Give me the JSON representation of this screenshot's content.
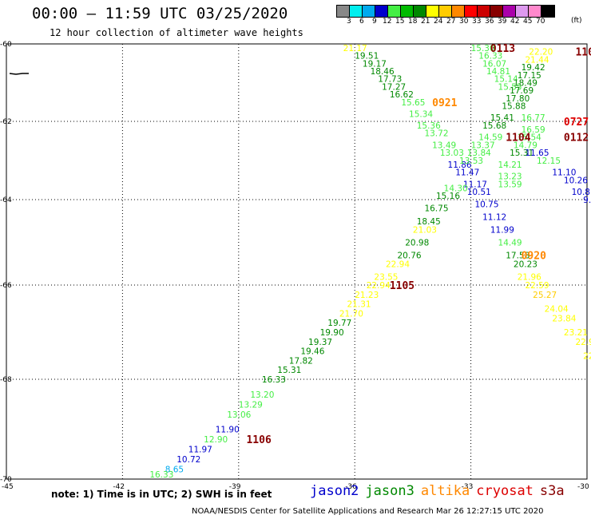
{
  "title": "00:00 – 11:59 UTC 03/25/2020",
  "subtitle": "12 hour collection of altimeter wave heights",
  "colorbar": {
    "labels": [
      "3",
      "6",
      "9",
      "12",
      "15",
      "18",
      "21",
      "24",
      "27",
      "30",
      "33",
      "36",
      "39",
      "42",
      "45",
      "70"
    ],
    "unit": "(ft)",
    "colors": [
      "#888888",
      "#00eeee",
      "#00aaee",
      "#0000cc",
      "#44ee44",
      "#00bb00",
      "#008800",
      "#ffff00",
      "#ffcc00",
      "#ff8800",
      "#ff0000",
      "#cc0000",
      "#880000",
      "#aa00aa",
      "#dd99ee",
      "#ff88cc",
      "#000000"
    ]
  },
  "axes": {
    "lat_labels": [
      "-60",
      "-62",
      "-64",
      "-66",
      "-68",
      "-70"
    ],
    "lon_labels": [
      "-45",
      "-42",
      "-39",
      "-36",
      "-33",
      "-30"
    ]
  },
  "note": "note:  1) Time is in UTC;  2) SWH is in feet",
  "legend": [
    {
      "name": "jason2",
      "color": "#0000cc"
    },
    {
      "name": "jason3",
      "color": "#008800"
    },
    {
      "name": "altika",
      "color": "#ff8800"
    },
    {
      "name": "cryosat",
      "color": "#dd0000"
    },
    {
      "name": "s3a",
      "color": "#880000"
    }
  ],
  "footer": "NOAA/NESDIS Center for Satellite Applications and Research   Mar 26 12:27:15 UTC 2020",
  "pass_times": [
    {
      "t": "0113",
      "lon": -32.5,
      "lat": -60.1,
      "color": "#880000"
    },
    {
      "t": "110",
      "lon": -30.3,
      "lat": -60.2,
      "color": "#880000"
    },
    {
      "t": "0921",
      "lon": -34.0,
      "lat": -61.5,
      "color": "#ff8800"
    },
    {
      "t": "0727",
      "lon": -30.6,
      "lat": -62.0,
      "color": "#dd0000"
    },
    {
      "t": "1104",
      "lon": -32.1,
      "lat": -62.4,
      "color": "#880000"
    },
    {
      "t": "0112",
      "lon": -30.6,
      "lat": -62.4,
      "color": "#880000"
    },
    {
      "t": "0920",
      "lon": -31.7,
      "lat": -65.3,
      "color": "#ff8800"
    },
    {
      "t": "1105",
      "lon": -35.1,
      "lat": -66.0,
      "color": "#880000"
    },
    {
      "t": "1106",
      "lon": -38.8,
      "lat": -69.2,
      "color": "#880000"
    }
  ],
  "points": [
    {
      "v": "21.17",
      "lon": -36.3,
      "lat": -60.1,
      "color": "#ffff00"
    },
    {
      "v": "19.51",
      "lon": -36.0,
      "lat": -60.3,
      "color": "#008800"
    },
    {
      "v": "19.17",
      "lon": -35.8,
      "lat": -60.5,
      "color": "#008800"
    },
    {
      "v": "18.46",
      "lon": -35.6,
      "lat": -60.7,
      "color": "#008800"
    },
    {
      "v": "17.73",
      "lon": -35.4,
      "lat": -60.9,
      "color": "#008800"
    },
    {
      "v": "17.27",
      "lon": -35.3,
      "lat": -61.1,
      "color": "#008800"
    },
    {
      "v": "16.62",
      "lon": -35.1,
      "lat": -61.3,
      "color": "#008800"
    },
    {
      "v": "15.65",
      "lon": -34.8,
      "lat": -61.5,
      "color": "#44ee44"
    },
    {
      "v": "15.34",
      "lon": -34.6,
      "lat": -61.8,
      "color": "#44ee44"
    },
    {
      "v": "15.36",
      "lon": -34.4,
      "lat": -62.1,
      "color": "#44ee44"
    },
    {
      "v": "13.72",
      "lon": -34.2,
      "lat": -62.3,
      "color": "#44ee44"
    },
    {
      "v": "13.49",
      "lon": -34.0,
      "lat": -62.6,
      "color": "#44ee44"
    },
    {
      "v": "13.03",
      "lon": -33.8,
      "lat": -62.8,
      "color": "#44ee44"
    },
    {
      "v": "11.86",
      "lon": -33.6,
      "lat": -63.1,
      "color": "#0000cc"
    },
    {
      "v": "11.47",
      "lon": -33.4,
      "lat": -63.3,
      "color": "#0000cc"
    },
    {
      "v": "11.17",
      "lon": -33.2,
      "lat": -63.6,
      "color": "#0000cc"
    },
    {
      "v": "10.51",
      "lon": -33.1,
      "lat": -63.8,
      "color": "#0000cc"
    },
    {
      "v": "14.30",
      "lon": -33.7,
      "lat": -63.7,
      "color": "#44ee44"
    },
    {
      "v": "15.16",
      "lon": -33.9,
      "lat": -63.9,
      "color": "#008800"
    },
    {
      "v": "16.75",
      "lon": -34.2,
      "lat": -64.2,
      "color": "#008800"
    },
    {
      "v": "18.45",
      "lon": -34.4,
      "lat": -64.5,
      "color": "#008800"
    },
    {
      "v": "21.03",
      "lon": -34.5,
      "lat": -64.7,
      "color": "#ffff00"
    },
    {
      "v": "20.98",
      "lon": -34.7,
      "lat": -65.0,
      "color": "#008800"
    },
    {
      "v": "20.76",
      "lon": -34.9,
      "lat": -65.3,
      "color": "#008800"
    },
    {
      "v": "22.94",
      "lon": -35.2,
      "lat": -65.5,
      "color": "#ffff00"
    },
    {
      "v": "23.55",
      "lon": -35.5,
      "lat": -65.8,
      "color": "#ffff00"
    },
    {
      "v": "22.94",
      "lon": -35.7,
      "lat": -66.0,
      "color": "#ffff00"
    },
    {
      "v": "21.23",
      "lon": -36.0,
      "lat": -66.2,
      "color": "#ffff00"
    },
    {
      "v": "21.31",
      "lon": -36.2,
      "lat": -66.4,
      "color": "#ffff00"
    },
    {
      "v": "21.70",
      "lon": -36.4,
      "lat": -66.6,
      "color": "#ffff00"
    },
    {
      "v": "19.77",
      "lon": -36.7,
      "lat": -66.8,
      "color": "#008800"
    },
    {
      "v": "19.90",
      "lon": -36.9,
      "lat": -67.0,
      "color": "#008800"
    },
    {
      "v": "19.37",
      "lon": -37.2,
      "lat": -67.2,
      "color": "#008800"
    },
    {
      "v": "19.46",
      "lon": -37.4,
      "lat": -67.4,
      "color": "#008800"
    },
    {
      "v": "17.82",
      "lon": -37.7,
      "lat": -67.6,
      "color": "#008800"
    },
    {
      "v": "15.31",
      "lon": -38.0,
      "lat": -67.8,
      "color": "#008800"
    },
    {
      "v": "16.33",
      "lon": -38.4,
      "lat": -68.0,
      "color": "#008800"
    },
    {
      "v": "13.20",
      "lon": -38.7,
      "lat": -68.3,
      "color": "#44ee44"
    },
    {
      "v": "13.29",
      "lon": -39.0,
      "lat": -68.5,
      "color": "#44ee44"
    },
    {
      "v": "13.06",
      "lon": -39.3,
      "lat": -68.7,
      "color": "#44ee44"
    },
    {
      "v": "11.90",
      "lon": -39.6,
      "lat": -69.0,
      "color": "#0000cc"
    },
    {
      "v": "12.90",
      "lon": -39.9,
      "lat": -69.2,
      "color": "#44ee44"
    },
    {
      "v": "11.97",
      "lon": -40.3,
      "lat": -69.4,
      "color": "#0000cc"
    },
    {
      "v": "10.72",
      "lon": -40.6,
      "lat": -69.6,
      "color": "#0000cc"
    },
    {
      "v": "8.65",
      "lon": -40.9,
      "lat": -69.8,
      "color": "#00aaee"
    },
    {
      "v": "16.33",
      "lon": -41.3,
      "lat": -69.9,
      "color": "#44ee44"
    },
    {
      "v": "15.30",
      "lon": -33.0,
      "lat": -60.1,
      "color": "#44ee44"
    },
    {
      "v": "16.33",
      "lon": -32.8,
      "lat": -60.3,
      "color": "#44ee44"
    },
    {
      "v": "16.07",
      "lon": -32.7,
      "lat": -60.5,
      "color": "#44ee44"
    },
    {
      "v": "14.81",
      "lon": -32.6,
      "lat": -60.7,
      "color": "#44ee44"
    },
    {
      "v": "15.14",
      "lon": -32.4,
      "lat": -60.9,
      "color": "#44ee44"
    },
    {
      "v": "15.55",
      "lon": -32.3,
      "lat": -61.1,
      "color": "#44ee44"
    },
    {
      "v": "17.80",
      "lon": -32.1,
      "lat": -61.4,
      "color": "#008800"
    },
    {
      "v": "15.88",
      "lon": -32.2,
      "lat": -61.6,
      "color": "#008800"
    },
    {
      "v": "15.41",
      "lon": -32.5,
      "lat": -61.9,
      "color": "#008800"
    },
    {
      "v": "15.68",
      "lon": -32.7,
      "lat": -62.1,
      "color": "#008800"
    },
    {
      "v": "14.59",
      "lon": -32.8,
      "lat": -62.4,
      "color": "#44ee44"
    },
    {
      "v": "13.37",
      "lon": -33.0,
      "lat": -62.6,
      "color": "#44ee44"
    },
    {
      "v": "13.84",
      "lon": -33.1,
      "lat": -62.8,
      "color": "#44ee44"
    },
    {
      "v": "13.53",
      "lon": -33.3,
      "lat": -63.0,
      "color": "#44ee44"
    },
    {
      "v": "22.20",
      "lon": -31.5,
      "lat": -60.2,
      "color": "#ffff00"
    },
    {
      "v": "21.44",
      "lon": -31.6,
      "lat": -60.4,
      "color": "#ffff00"
    },
    {
      "v": "19.42",
      "lon": -31.7,
      "lat": -60.6,
      "color": "#008800"
    },
    {
      "v": "17.15",
      "lon": -31.8,
      "lat": -60.8,
      "color": "#008800"
    },
    {
      "v": "18.49",
      "lon": -31.9,
      "lat": -61.0,
      "color": "#008800"
    },
    {
      "v": "17.69",
      "lon": -32.0,
      "lat": -61.2,
      "color": "#008800"
    },
    {
      "v": "16.77",
      "lon": -31.7,
      "lat": -61.9,
      "color": "#44ee44"
    },
    {
      "v": "16.59",
      "lon": -31.7,
      "lat": -62.2,
      "color": "#44ee44"
    },
    {
      "v": "15.54",
      "lon": -31.8,
      "lat": -62.4,
      "color": "#44ee44"
    },
    {
      "v": "14.79",
      "lon": -31.9,
      "lat": -62.6,
      "color": "#44ee44"
    },
    {
      "v": "15.31",
      "lon": -32.0,
      "lat": -62.8,
      "color": "#008800"
    },
    {
      "v": "11.65",
      "lon": -31.6,
      "lat": -62.8,
      "color": "#0000cc"
    },
    {
      "v": "12.15",
      "lon": -31.3,
      "lat": -63.0,
      "color": "#44ee44"
    },
    {
      "v": "11.10",
      "lon": -30.9,
      "lat": -63.3,
      "color": "#0000cc"
    },
    {
      "v": "10.26",
      "lon": -30.6,
      "lat": -63.5,
      "color": "#0000cc"
    },
    {
      "v": "10.8",
      "lon": -30.4,
      "lat": -63.8,
      "color": "#0000cc"
    },
    {
      "v": "9.",
      "lon": -30.1,
      "lat": -64.0,
      "color": "#0000cc"
    },
    {
      "v": "14.21",
      "lon": -32.3,
      "lat": -63.1,
      "color": "#44ee44"
    },
    {
      "v": "13.23",
      "lon": -32.3,
      "lat": -63.4,
      "color": "#44ee44"
    },
    {
      "v": "13.59",
      "lon": -32.3,
      "lat": -63.6,
      "color": "#44ee44"
    },
    {
      "v": "10.75",
      "lon": -32.9,
      "lat": -64.1,
      "color": "#0000cc"
    },
    {
      "v": "11.12",
      "lon": -32.7,
      "lat": -64.4,
      "color": "#0000cc"
    },
    {
      "v": "11.99",
      "lon": -32.5,
      "lat": -64.7,
      "color": "#0000cc"
    },
    {
      "v": "14.49",
      "lon": -32.3,
      "lat": -65.0,
      "color": "#44ee44"
    },
    {
      "v": "17.58",
      "lon": -32.1,
      "lat": -65.3,
      "color": "#008800"
    },
    {
      "v": "20.23",
      "lon": -31.9,
      "lat": -65.5,
      "color": "#008800"
    },
    {
      "v": "21.96",
      "lon": -31.8,
      "lat": -65.8,
      "color": "#ffff00"
    },
    {
      "v": "22.59",
      "lon": -31.6,
      "lat": -66.0,
      "color": "#ffff00"
    },
    {
      "v": "25.27",
      "lon": -31.4,
      "lat": -66.2,
      "color": "#ffcc00"
    },
    {
      "v": "24.04",
      "lon": -31.1,
      "lat": -66.5,
      "color": "#ffff00"
    },
    {
      "v": "23.84",
      "lon": -30.9,
      "lat": -66.7,
      "color": "#ffff00"
    },
    {
      "v": "23.21",
      "lon": -30.6,
      "lat": -67.0,
      "color": "#ffff00"
    },
    {
      "v": "22.9",
      "lon": -30.3,
      "lat": -67.2,
      "color": "#ffff00"
    },
    {
      "v": "22",
      "lon": -30.1,
      "lat": -67.5,
      "color": "#ffff00"
    }
  ]
}
